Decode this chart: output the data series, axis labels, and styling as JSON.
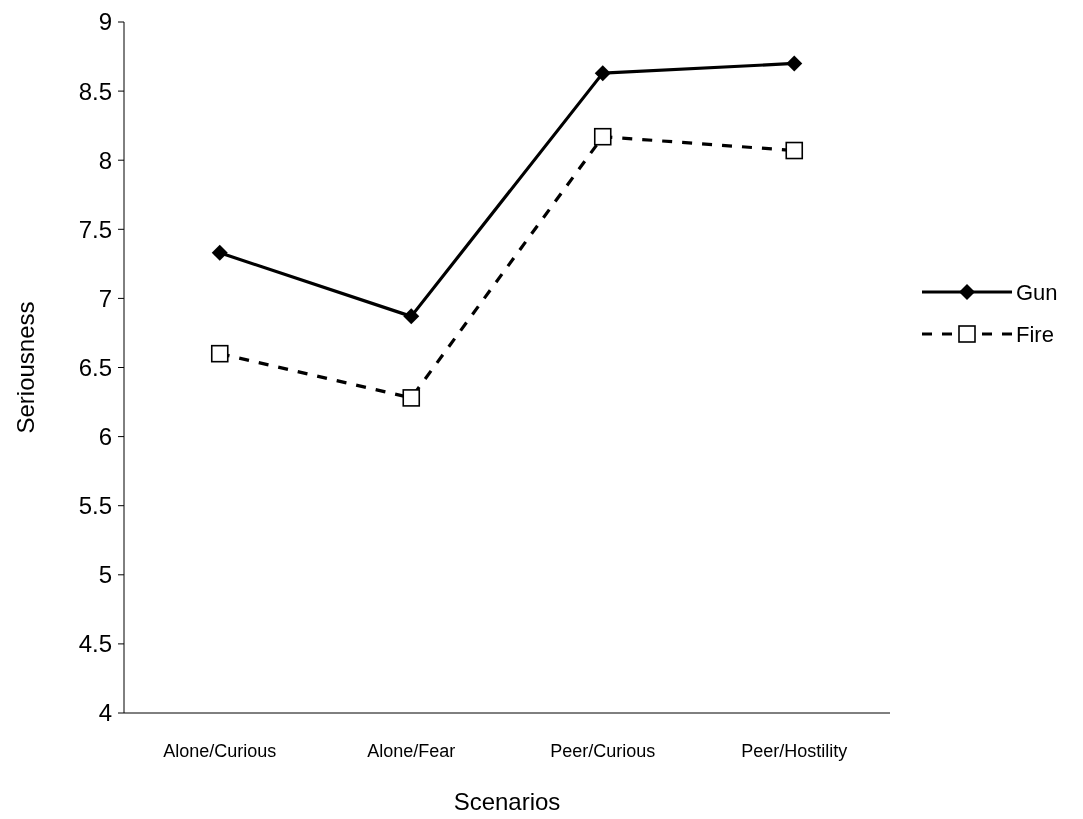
{
  "chart_data": {
    "type": "line",
    "xlabel": "Scenarios",
    "ylabel": "Seriousness",
    "categories": [
      "Alone/Curious",
      "Alone/Fear",
      "Peer/Curious",
      "Peer/Hostility"
    ],
    "series": [
      {
        "name": "Gun",
        "color": "#000000",
        "values": [
          7.33,
          6.87,
          8.63,
          8.7
        ],
        "marker": "diamond",
        "line_style": "solid"
      },
      {
        "name": "Fire",
        "color": "#000000",
        "values": [
          6.6,
          6.28,
          8.17,
          8.07
        ],
        "marker": "square",
        "line_style": "dashed"
      }
    ],
    "ylim": [
      4,
      9
    ],
    "yticks": [
      4,
      4.5,
      5,
      5.5,
      6,
      6.5,
      7,
      7.5,
      8,
      8.5,
      9
    ],
    "grid": false,
    "legend": "right"
  }
}
